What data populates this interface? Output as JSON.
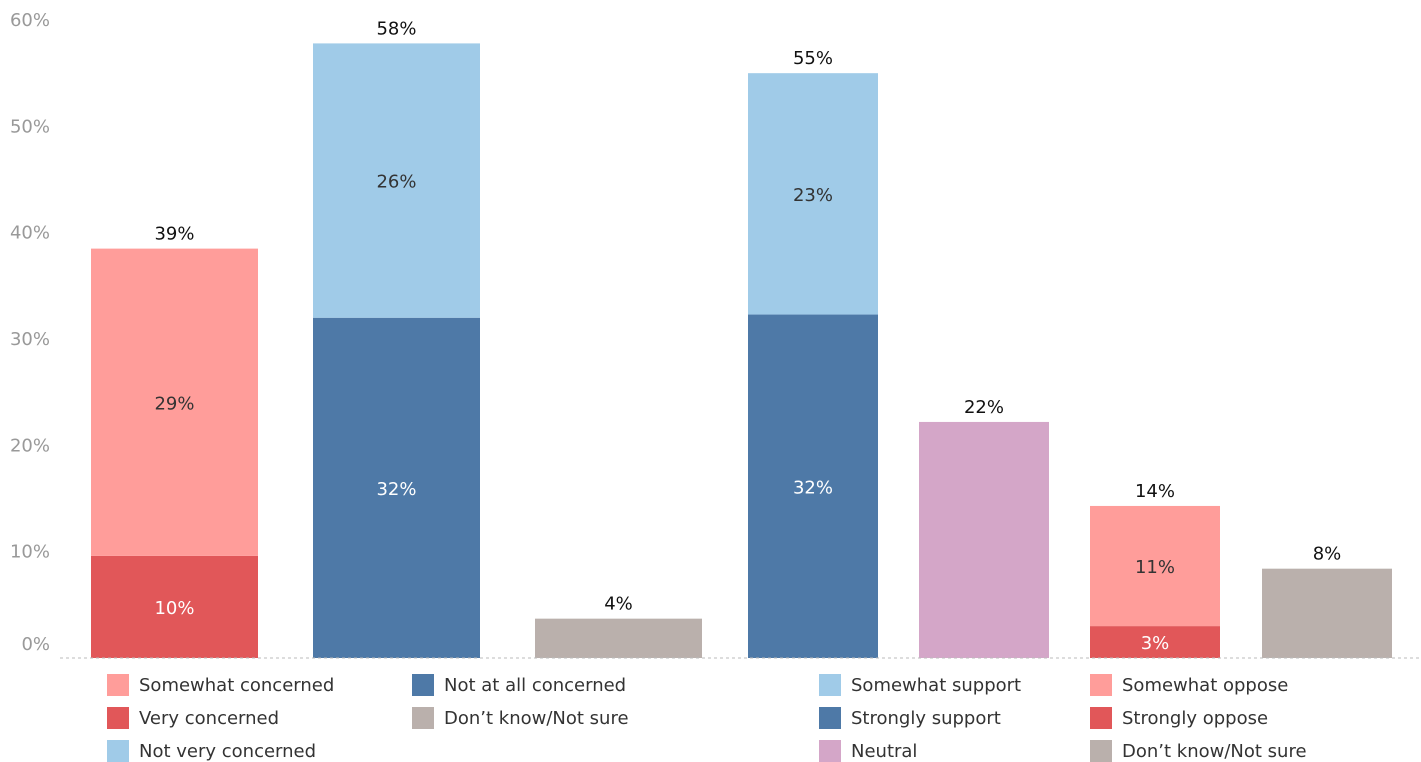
{
  "chart_data": [
    {
      "type": "bar",
      "stacked": true,
      "ylim": [
        0,
        60
      ],
      "yticks": [
        "0%",
        "10%",
        "20%",
        "30%",
        "40%",
        "50%",
        "60%"
      ],
      "grid": false,
      "legend_placement": "bottom",
      "bars": [
        {
          "total_label": "39%",
          "total": 38.5,
          "segments": [
            {
              "series": "Very concerned",
              "value": 9.6,
              "label": "10%"
            },
            {
              "series": "Somewhat concerned",
              "value": 28.9,
              "label": "29%"
            }
          ]
        },
        {
          "total_label": "58%",
          "total": 57.8,
          "segments": [
            {
              "series": "Not at all concerned",
              "value": 32.0,
              "label": "32%"
            },
            {
              "series": "Not very concerned",
              "value": 25.8,
              "label": "26%"
            }
          ]
        },
        {
          "total_label": "4%",
          "total": 3.7,
          "segments": [
            {
              "series": "Don’t know/Not sure",
              "value": 3.7,
              "label": ""
            }
          ]
        }
      ],
      "legend": [
        {
          "name": "Somewhat concerned",
          "color": "#ff9d9a"
        },
        {
          "name": "Very concerned",
          "color": "#e15759"
        },
        {
          "name": "Not very concerned",
          "color": "#a0cbe8"
        },
        {
          "name": "Not at all concerned",
          "color": "#4e79a7"
        },
        {
          "name": "Don’t know/Not sure",
          "color": "#bab0ac"
        }
      ]
    },
    {
      "type": "bar",
      "stacked": true,
      "ylim": [
        0,
        60
      ],
      "grid": false,
      "legend_placement": "bottom",
      "bars": [
        {
          "total_label": "55%",
          "total": 55.0,
          "segments": [
            {
              "series": "Strongly support",
              "value": 32.3,
              "label": "32%"
            },
            {
              "series": "Somewhat support",
              "value": 22.7,
              "label": "23%"
            }
          ]
        },
        {
          "total_label": "22%",
          "total": 22.2,
          "segments": [
            {
              "series": "Neutral",
              "value": 22.2,
              "label": ""
            }
          ]
        },
        {
          "total_label": "14%",
          "total": 14.3,
          "segments": [
            {
              "series": "Strongly oppose",
              "value": 3.0,
              "label": "3%"
            },
            {
              "series": "Somewhat oppose",
              "value": 11.3,
              "label": "11%"
            }
          ]
        },
        {
          "total_label": "8%",
          "total": 8.4,
          "segments": [
            {
              "series": "Don’t know/Not sure",
              "value": 8.4,
              "label": ""
            }
          ]
        }
      ],
      "legend": [
        {
          "name": "Somewhat support",
          "color": "#a0cbe8"
        },
        {
          "name": "Strongly support",
          "color": "#4e79a7"
        },
        {
          "name": "Neutral",
          "color": "#d4a6c8"
        },
        {
          "name": "Somewhat oppose",
          "color": "#ff9d9a"
        },
        {
          "name": "Strongly oppose",
          "color": "#e15759"
        },
        {
          "name": "Don’t know/Not sure",
          "color": "#bab0ac"
        }
      ]
    }
  ],
  "colors": {
    "Somewhat concerned": "#ff9d9a",
    "Very concerned": "#e15759",
    "Not very concerned": "#a0cbe8",
    "Not at all concerned": "#4e79a7",
    "Don’t know/Not sure": "#bab0ac",
    "Somewhat support": "#a0cbe8",
    "Strongly support": "#4e79a7",
    "Neutral": "#d4a6c8",
    "Somewhat oppose": "#ff9d9a",
    "Strongly oppose": "#e15759",
    "dark_label_on": [
      "#ff9d9a",
      "#a0cbe8"
    ]
  }
}
